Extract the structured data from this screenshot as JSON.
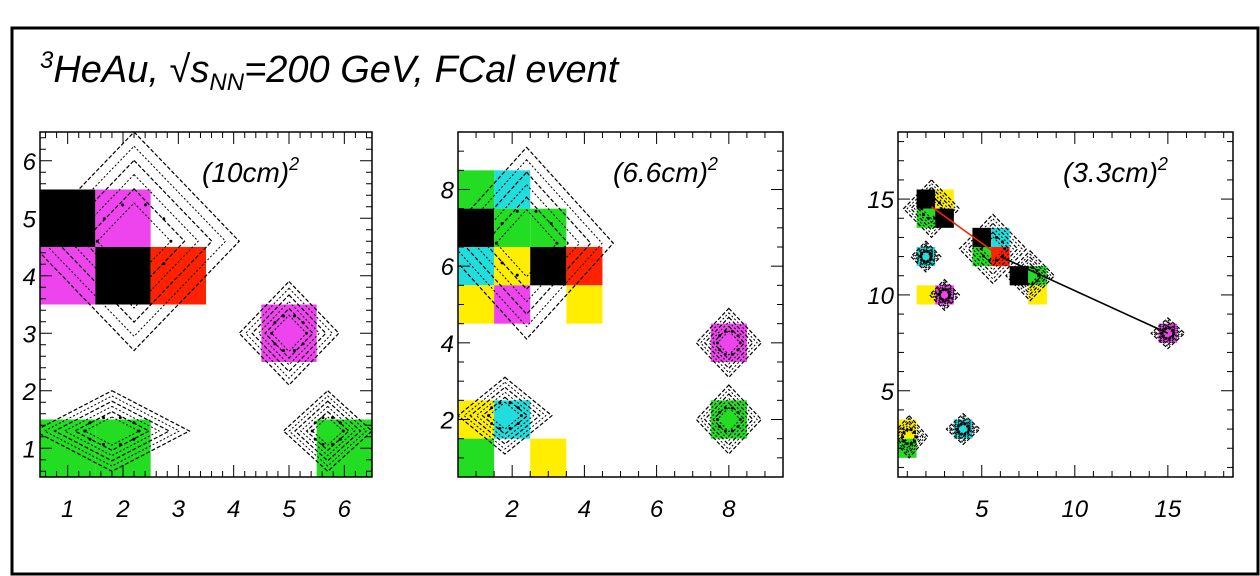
{
  "figure": {
    "title_prefix_sup": "3",
    "title_main": "HeAu, √s",
    "title_sub": "NN",
    "title_rest": "=200 GeV, FCal event"
  },
  "colors": {
    "black": "#000000",
    "magenta": "#ee44ee",
    "red": "#ff2200",
    "green": "#22dd22",
    "cyan": "#22dddd",
    "yellow": "#ffee00",
    "frame": "#000000"
  },
  "chart_data": [
    {
      "type": "heatmap",
      "label_base": "(10cm)",
      "label_sup": "2",
      "xlim": [
        0.5,
        6.5
      ],
      "ylim": [
        0.5,
        6.5
      ],
      "xticks": [
        "1",
        "2",
        "3",
        "4",
        "5",
        "6"
      ],
      "yticks": [
        "1",
        "2",
        "3",
        "4",
        "5",
        "6"
      ],
      "cells": [
        {
          "x": 1,
          "y": 5,
          "color": "black"
        },
        {
          "x": 2,
          "y": 5,
          "color": "magenta"
        },
        {
          "x": 1,
          "y": 4,
          "color": "magenta"
        },
        {
          "x": 2,
          "y": 4,
          "color": "black"
        },
        {
          "x": 3,
          "y": 4,
          "color": "red"
        },
        {
          "x": 5,
          "y": 3,
          "color": "magenta"
        },
        {
          "x": 1,
          "y": 1,
          "color": "green"
        },
        {
          "x": 2,
          "y": 1,
          "color": "green"
        },
        {
          "x": 6,
          "y": 1,
          "color": "green"
        }
      ],
      "contours": [
        {
          "x": 2.2,
          "y": 4.6,
          "rx": 1.9,
          "ry": 1.9,
          "shape": "diamond"
        },
        {
          "x": 5,
          "y": 3,
          "rx": 0.9,
          "ry": 0.9,
          "shape": "diamond"
        },
        {
          "x": 1.8,
          "y": 1.3,
          "rx": 1.4,
          "ry": 0.7,
          "shape": "diamond"
        },
        {
          "x": 5.7,
          "y": 1.3,
          "rx": 0.8,
          "ry": 0.7,
          "shape": "diamond"
        }
      ]
    },
    {
      "type": "heatmap",
      "label_base": "(6.6cm)",
      "label_sup": "2",
      "xlim": [
        0.5,
        9.5
      ],
      "ylim": [
        0.5,
        9.5
      ],
      "xticks": [
        "2",
        "4",
        "6",
        "8"
      ],
      "yticks": [
        "2",
        "4",
        "6",
        "8"
      ],
      "cells": [
        {
          "x": 1,
          "y": 8,
          "color": "green"
        },
        {
          "x": 2,
          "y": 8,
          "color": "cyan"
        },
        {
          "x": 1,
          "y": 7,
          "color": "black"
        },
        {
          "x": 2,
          "y": 7,
          "color": "green"
        },
        {
          "x": 3,
          "y": 7,
          "color": "green"
        },
        {
          "x": 1,
          "y": 6,
          "color": "cyan"
        },
        {
          "x": 2,
          "y": 6,
          "color": "yellow"
        },
        {
          "x": 3,
          "y": 6,
          "color": "black"
        },
        {
          "x": 4,
          "y": 6,
          "color": "red"
        },
        {
          "x": 1,
          "y": 5,
          "color": "yellow"
        },
        {
          "x": 2,
          "y": 5,
          "color": "magenta"
        },
        {
          "x": 4,
          "y": 5,
          "color": "yellow"
        },
        {
          "x": 8,
          "y": 4,
          "color": "magenta"
        },
        {
          "x": 1,
          "y": 2,
          "color": "yellow"
        },
        {
          "x": 2,
          "y": 2,
          "color": "cyan"
        },
        {
          "x": 8,
          "y": 2,
          "color": "green"
        },
        {
          "x": 1,
          "y": 1,
          "color": "green"
        },
        {
          "x": 3,
          "y": 1,
          "color": "yellow"
        }
      ],
      "contours": [
        {
          "x": 2.4,
          "y": 6.6,
          "rx": 2.4,
          "ry": 2.5,
          "shape": "diamond"
        },
        {
          "x": 8,
          "y": 4,
          "rx": 0.9,
          "ry": 0.9,
          "shape": "diamond"
        },
        {
          "x": 8,
          "y": 2,
          "rx": 0.9,
          "ry": 0.9,
          "shape": "diamond"
        },
        {
          "x": 1.8,
          "y": 2.1,
          "rx": 1.3,
          "ry": 1.0,
          "shape": "diamond"
        }
      ]
    },
    {
      "type": "heatmap",
      "label_base": "(3.3cm)",
      "label_sup": "2",
      "xlim": [
        0.5,
        18.5
      ],
      "ylim": [
        0.5,
        18.5
      ],
      "xticks": [
        "5",
        "10",
        "15"
      ],
      "yticks": [
        "5",
        "10",
        "15"
      ],
      "cells": [
        {
          "x": 2,
          "y": 15,
          "color": "black"
        },
        {
          "x": 3,
          "y": 15,
          "color": "yellow"
        },
        {
          "x": 2,
          "y": 14,
          "color": "green"
        },
        {
          "x": 3,
          "y": 14,
          "color": "black"
        },
        {
          "x": 2,
          "y": 12,
          "color": "cyan"
        },
        {
          "x": 5,
          "y": 13,
          "color": "black"
        },
        {
          "x": 6,
          "y": 13,
          "color": "cyan"
        },
        {
          "x": 5,
          "y": 12,
          "color": "green"
        },
        {
          "x": 6,
          "y": 12,
          "color": "red"
        },
        {
          "x": 7,
          "y": 11,
          "color": "black"
        },
        {
          "x": 8,
          "y": 11,
          "color": "green"
        },
        {
          "x": 2,
          "y": 10,
          "color": "yellow"
        },
        {
          "x": 3,
          "y": 10,
          "color": "magenta"
        },
        {
          "x": 8,
          "y": 10,
          "color": "yellow"
        },
        {
          "x": 15,
          "y": 8,
          "color": "magenta"
        },
        {
          "x": 1,
          "y": 3,
          "color": "yellow"
        },
        {
          "x": 1,
          "y": 2,
          "color": "green"
        },
        {
          "x": 4,
          "y": 3,
          "color": "cyan"
        }
      ],
      "contours": [
        {
          "x": 2.3,
          "y": 14.5,
          "rx": 1.5,
          "ry": 1.5,
          "shape": "diamond"
        },
        {
          "x": 5.6,
          "y": 12.4,
          "rx": 1.8,
          "ry": 1.8,
          "shape": "diamond"
        },
        {
          "x": 7.6,
          "y": 11,
          "rx": 1.3,
          "ry": 1.3,
          "shape": "diamond"
        },
        {
          "x": 2,
          "y": 12,
          "rx": 0.8,
          "ry": 0.8,
          "shape": "diamond"
        },
        {
          "x": 3,
          "y": 10,
          "rx": 0.8,
          "ry": 0.8,
          "shape": "diamond"
        },
        {
          "x": 15,
          "y": 8,
          "rx": 0.9,
          "ry": 0.8,
          "shape": "diamond"
        },
        {
          "x": 4,
          "y": 3,
          "rx": 0.9,
          "ry": 0.8,
          "shape": "diamond"
        },
        {
          "x": 1.1,
          "y": 2.6,
          "rx": 1.0,
          "ry": 1.1,
          "shape": "diamond"
        }
      ],
      "lines": [
        {
          "x1": 2.3,
          "y1": 14.6,
          "x2": 6,
          "y2": 12,
          "color": "red"
        },
        {
          "x1": 6,
          "y1": 12,
          "x2": 15,
          "y2": 8,
          "color": "black"
        }
      ]
    }
  ]
}
